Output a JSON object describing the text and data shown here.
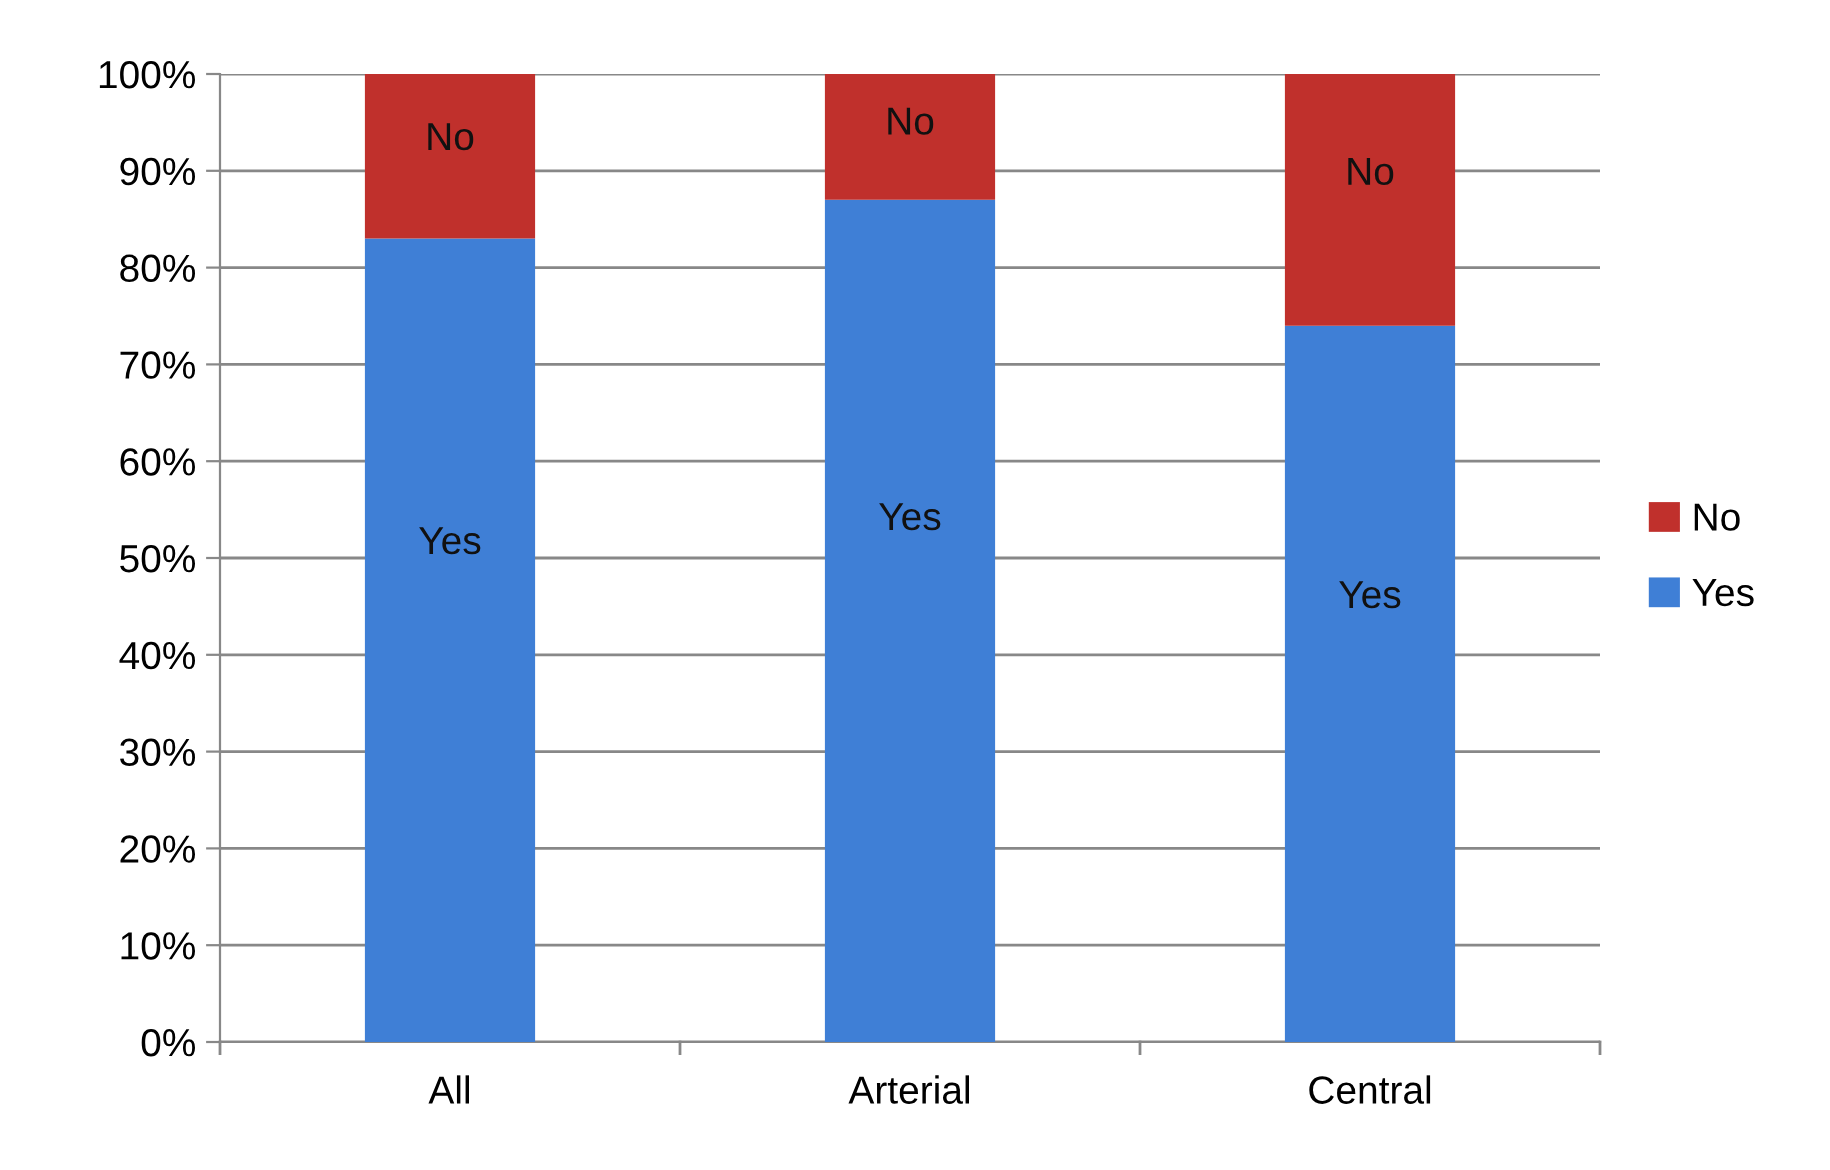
{
  "chart_data": {
    "type": "bar",
    "stacked": true,
    "categories": [
      "All",
      "Arterial",
      "Central"
    ],
    "series": [
      {
        "name": "Yes",
        "color": "#3f7fd6",
        "values": [
          83,
          87,
          74
        ]
      },
      {
        "name": "No",
        "color": "#c0302c",
        "values": [
          17,
          13,
          26
        ]
      }
    ],
    "ylim": [
      0,
      100
    ],
    "yticks": [
      {
        "value": 0,
        "label": "0%"
      },
      {
        "value": 10,
        "label": "10%"
      },
      {
        "value": 20,
        "label": "20%"
      },
      {
        "value": 30,
        "label": "30%"
      },
      {
        "value": 40,
        "label": "40%"
      },
      {
        "value": 50,
        "label": "50%"
      },
      {
        "value": 60,
        "label": "60%"
      },
      {
        "value": 70,
        "label": "70%"
      },
      {
        "value": 80,
        "label": "80%"
      },
      {
        "value": 90,
        "label": "90%"
      },
      {
        "value": 100,
        "label": "100%"
      }
    ],
    "grid": "y",
    "legend": "right"
  }
}
